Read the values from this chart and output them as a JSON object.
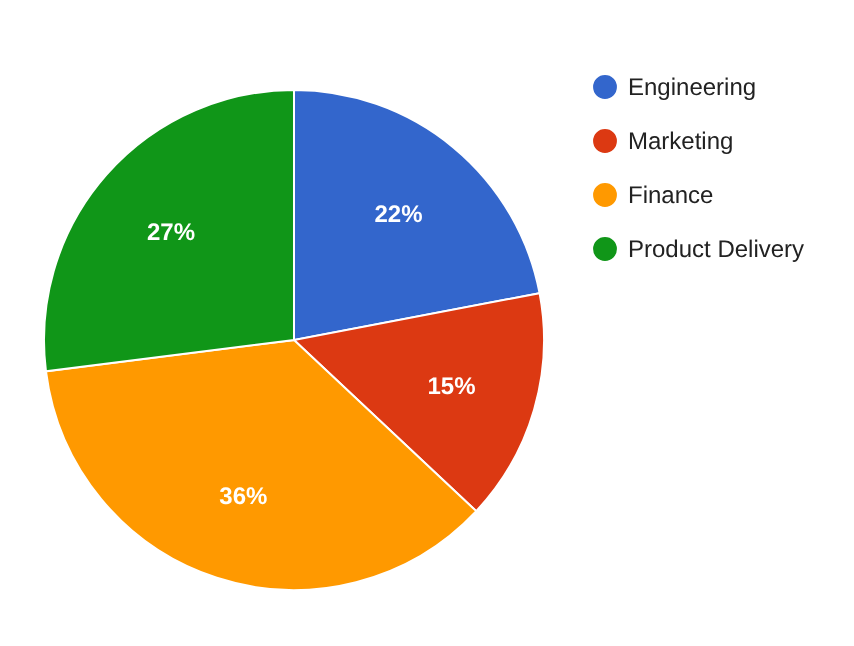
{
  "chart_data": {
    "type": "pie",
    "categories": [
      "Engineering",
      "Marketing",
      "Finance",
      "Product Delivery"
    ],
    "values": [
      22,
      15,
      36,
      27
    ],
    "value_labels": [
      "22%",
      "15%",
      "36%",
      "27%"
    ],
    "colors": [
      "#3366cc",
      "#dc3912",
      "#ff9900",
      "#109618"
    ],
    "legend": "right"
  }
}
